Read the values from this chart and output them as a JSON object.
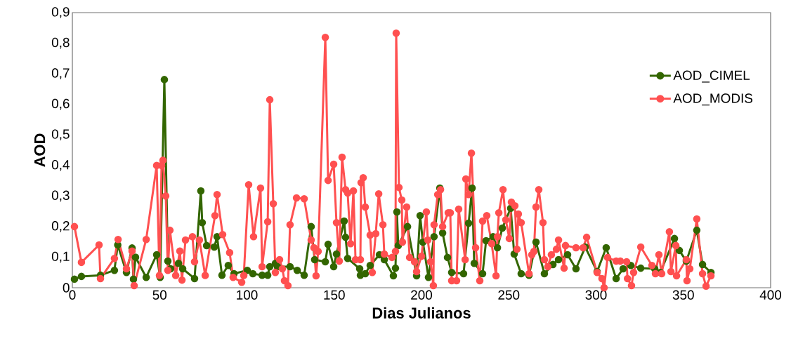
{
  "chart_data": {
    "type": "line",
    "xlabel": "Dias Julianos",
    "ylabel": "AOD",
    "xlim": [
      0,
      400
    ],
    "xticks": [
      0,
      50,
      100,
      150,
      200,
      250,
      300,
      350,
      400
    ],
    "ylim": [
      0,
      0.9
    ],
    "yticks": [
      0,
      {
        "value": 0.1,
        "label": "0,1"
      },
      {
        "value": 0.2,
        "label": "0,2"
      },
      {
        "value": 0.3,
        "label": "0,3"
      },
      {
        "value": 0.4,
        "label": "0,4"
      },
      {
        "value": 0.5,
        "label": "0,5"
      },
      {
        "value": 0.6,
        "label": "0,6"
      },
      {
        "value": 0.7,
        "label": "0,7"
      },
      {
        "value": 0.8,
        "label": "0,8"
      },
      {
        "value": 0.9,
        "label": "0,9"
      }
    ],
    "grid": false,
    "legend": "top right",
    "marker": "circle",
    "line_style": "solid",
    "series": [
      {
        "name": "AOD_CIMEL",
        "color": "#336600",
        "x": [
          1.2,
          5.2,
          16.1,
          24.1,
          26,
          31,
          34.2,
          35,
          36.2,
          42.3,
          48.3,
          50.3,
          52.7,
          54.7,
          56.3,
          60.8,
          63.2,
          70,
          73.6,
          74.4,
          76.9,
          81.3,
          82.9,
          85.7,
          89.3,
          92.6,
          100.2,
          103.4,
          108.7,
          111.9,
          113.1,
          116.3,
          117.5,
          124.7,
          128.8,
          132.8,
          136.8,
          138.8,
          144.9,
          146.5,
          149.7,
          151.3,
          155.7,
          156.5,
          157.7,
          164.6,
          165,
          167.8,
          170.6,
          175.9,
          178.7,
          183.9,
          185.1,
          185.9,
          186.7,
          192,
          193.2,
          197.2,
          199.2,
          200.8,
          204,
          207.2,
          210.5,
          212.1,
          214.9,
          217.3,
          224.1,
          227,
          229,
          230.2,
          235,
          237,
          241,
          243.5,
          246.3,
          251.1,
          253.1,
          257.1,
          261.6,
          265.6,
          270.4,
          275.3,
          278.5,
          283.7,
          288.5,
          293.8,
          300.6,
          305.8,
          311.5,
          315.5,
          319.9,
          325.6,
          333.6,
          336.8,
          344.9,
          347.7,
          351.7,
          357.7,
          361,
          365.8
        ],
        "values": [
          0.028,
          0.037,
          0.041,
          0.057,
          0.14,
          0.05,
          0.13,
          0.028,
          0.1,
          0.034,
          0.108,
          0.034,
          0.681,
          0.087,
          0.062,
          0.08,
          0.062,
          0.03,
          0.317,
          0.213,
          0.138,
          0.133,
          0.167,
          0.041,
          0.073,
          0.046,
          0.057,
          0.046,
          0.041,
          0.041,
          0.069,
          0.08,
          0.069,
          0.069,
          0.057,
          0.041,
          0.2,
          0.092,
          0.085,
          0.142,
          0.069,
          0.11,
          0.218,
          0.165,
          0.096,
          0.062,
          0.041,
          0.046,
          0.073,
          0.108,
          0.092,
          0.039,
          0.064,
          0.248,
          0.138,
          0.2,
          null,
          0.039,
          0.236,
          0.149,
          0.034,
          0.167,
          0.326,
          0.179,
          0.099,
          0.05,
          0.046,
          0.211,
          0.326,
          0.08,
          0.046,
          0.154,
          0.167,
          0.131,
          0.195,
          0.26,
          0.11,
          0.046,
          0.041,
          0.149,
          0.046,
          0.076,
          0.092,
          0.108,
          0.062,
          0.133,
          0.053,
          0.131,
          0.03,
          0.062,
          0.073,
          0.064,
          0.062,
          0.05,
          0.161,
          0.122,
          0.087,
          0.188,
          0.076,
          0.05
        ]
      },
      {
        "name": "AOD_MODIS",
        "color": "#ff5050",
        "x": [
          1.2,
          5.2,
          15.3,
          16.1,
          24.1,
          26.2,
          31,
          34.2,
          35.4,
          42.3,
          48.3,
          49.9,
          51.1,
          51.9,
          53.5,
          54.7,
          55.9,
          59.2,
          61.6,
          62.8,
          64.8,
          68.8,
          70,
          72.8,
          76.1,
          81.7,
          82.9,
          86.1,
          90.1,
          92.1,
          97,
          98.2,
          101,
          103.8,
          107.8,
          108.7,
          111.9,
          113.1,
          115.1,
          116.3,
          118.7,
          120.3,
          121.5,
          123.5,
          124.7,
          128.4,
          132.8,
          136.8,
          138.4,
          139.6,
          140.8,
          144.9,
          146.5,
          149.7,
          151.3,
          152.9,
          154.5,
          156.5,
          157.7,
          159.4,
          161,
          162.2,
          165,
          165.4,
          166.6,
          167.8,
          170.6,
          171.8,
          173.8,
          175.5,
          177.9,
          178.7,
          183.1,
          185.1,
          185.5,
          187.1,
          188.7,
          189.1,
          191.5,
          193.2,
          196,
          197.2,
          200,
          202.8,
          203.6,
          205.2,
          206.8,
          207.2,
          209.3,
          210.9,
          212.1,
          215.3,
          216.5,
          217.3,
          220.1,
          221.3,
          225,
          225.4,
          227,
          228.6,
          231,
          233.4,
          235,
          237.4,
          240.2,
          242.7,
          243.5,
          244.3,
          246.7,
          248.3,
          250.3,
          251.5,
          253.5,
          254.7,
          255.5,
          257.1,
          261.6,
          263.2,
          264.4,
          265.6,
          267.2,
          269.6,
          270.4,
          272.4,
          274.4,
          277.3,
          278.5,
          281.7,
          282.5,
          288.5,
          292.6,
          294.6,
          300.6,
          303.4,
          304.6,
          306.6,
          311.5,
          313.9,
          317.5,
          318,
          320.3,
          321.5,
          325.6,
          332,
          334,
          336,
          337.6,
          342,
          342.9,
          345.7,
          346.1,
          351.7,
          352.1,
          353.7,
          357.7,
          361,
          363,
          365.8
        ],
        "values": [
          0.2,
          0.083,
          0.14,
          0.03,
          0.096,
          0.158,
          0.062,
          0.12,
          0.007,
          0.158,
          0.4,
          0.04,
          0.4,
          0.417,
          0.3,
          0.057,
          0.188,
          0.04,
          0.12,
          0.025,
          0.156,
          0.167,
          0.085,
          0.156,
          0.04,
          0.236,
          0.305,
          0.174,
          0.115,
          0.034,
          0.018,
          0.04,
          0.337,
          0.167,
          0.326,
          0.069,
          0.216,
          0.615,
          0.275,
          0.05,
          0.092,
          0.062,
          0.023,
          0.007,
          0.206,
          0.294,
          0.291,
          0.156,
          0.131,
          0.039,
          0.119,
          0.819,
          0.351,
          0.404,
          0.213,
          0.087,
          0.427,
          0.321,
          0.31,
          0.144,
          0.317,
          0.092,
          0.092,
          0.344,
          0.36,
          0.264,
          0.172,
          0.05,
          0.177,
          0.307,
          0.206,
          0.11,
          0.099,
          0.119,
          0.833,
          0.328,
          0.287,
          0.149,
          0.264,
          0.099,
          0.085,
          0.053,
          0.103,
          0.248,
          0.156,
          0.085,
          0.007,
          0.206,
          0.305,
          0.321,
          0.2,
          0.245,
          0.245,
          0.023,
          0.023,
          0.257,
          0.092,
          0.356,
          0.305,
          0.44,
          0.131,
          0.023,
          0.218,
          0.236,
          0.144,
          0.039,
          0.167,
          0.245,
          0.321,
          0.222,
          0.161,
          0.28,
          0.268,
          0.126,
          0.241,
          0.213,
          0.046,
          0.108,
          0.119,
          0.264,
          0.321,
          0.213,
          0.092,
          0.069,
          0.108,
          0.126,
          0.156,
          0.064,
          0.138,
          0.131,
          0.131,
          0.165,
          0.05,
          0.03,
          0.0,
          0.099,
          0.087,
          0.087,
          0.085,
          0.03,
          0.007,
          0.05,
          0.133,
          0.073,
          0.046,
          0.108,
          0.046,
          0.183,
          0.053,
          0.138,
          0.039,
          0.092,
          0.023,
          0.062,
          0.225,
          0.046,
          0.005,
          0.039
        ]
      }
    ]
  }
}
